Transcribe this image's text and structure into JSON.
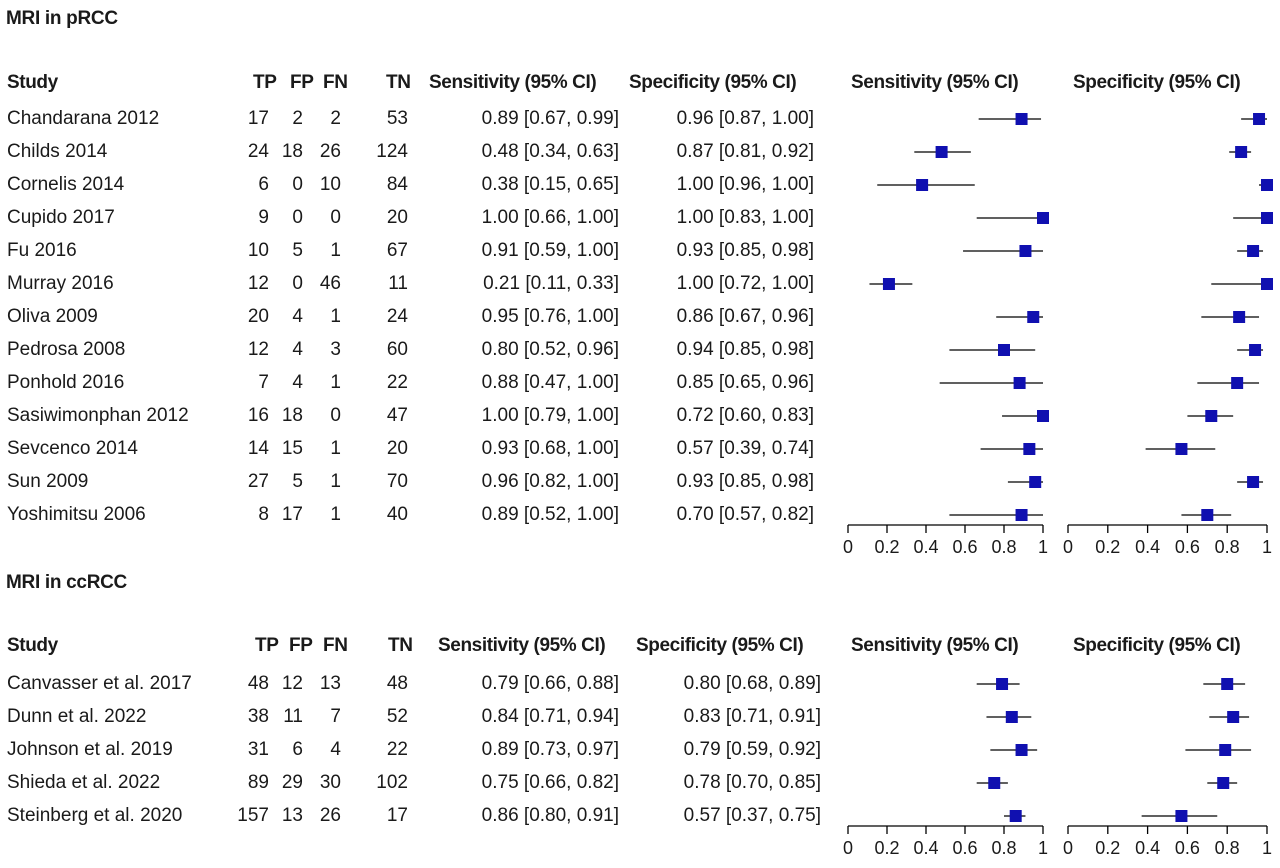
{
  "chart_data": [
    {
      "type": "forest",
      "title": "MRI in pRCC",
      "columns": [
        "Study",
        "TP",
        "FP",
        "FN",
        "TN",
        "Sensitivity (95% CI)",
        "Specificity (95% CI)"
      ],
      "plot_titles": [
        "Sensitivity (95% CI)",
        "Specificity (95% CI)"
      ],
      "axis_ticks": [
        "0",
        "0.2",
        "0.4",
        "0.6",
        "0.8",
        "1"
      ],
      "xlim": [
        0,
        1
      ],
      "marker_color": "#1010b0",
      "rows": [
        {
          "study": "Chandarana 2012",
          "tp": "17",
          "fp": "2",
          "fn": "2",
          "tn": "53",
          "sens_text": "0.89 [0.67, 0.99]",
          "spec_text": "0.96 [0.87, 1.00]",
          "sens": [
            0.89,
            0.67,
            0.99
          ],
          "spec": [
            0.96,
            0.87,
            1.0
          ]
        },
        {
          "study": "Childs 2014",
          "tp": "24",
          "fp": "18",
          "fn": "26",
          "tn": "124",
          "sens_text": "0.48 [0.34, 0.63]",
          "spec_text": "0.87 [0.81, 0.92]",
          "sens": [
            0.48,
            0.34,
            0.63
          ],
          "spec": [
            0.87,
            0.81,
            0.92
          ]
        },
        {
          "study": "Cornelis 2014",
          "tp": "6",
          "fp": "0",
          "fn": "10",
          "tn": "84",
          "sens_text": "0.38 [0.15, 0.65]",
          "spec_text": "1.00 [0.96, 1.00]",
          "sens": [
            0.38,
            0.15,
            0.65
          ],
          "spec": [
            1.0,
            0.96,
            1.0
          ]
        },
        {
          "study": "Cupido 2017",
          "tp": "9",
          "fp": "0",
          "fn": "0",
          "tn": "20",
          "sens_text": "1.00 [0.66, 1.00]",
          "spec_text": "1.00 [0.83, 1.00]",
          "sens": [
            1.0,
            0.66,
            1.0
          ],
          "spec": [
            1.0,
            0.83,
            1.0
          ]
        },
        {
          "study": "Fu 2016",
          "tp": "10",
          "fp": "5",
          "fn": "1",
          "tn": "67",
          "sens_text": "0.91 [0.59, 1.00]",
          "spec_text": "0.93 [0.85, 0.98]",
          "sens": [
            0.91,
            0.59,
            1.0
          ],
          "spec": [
            0.93,
            0.85,
            0.98
          ]
        },
        {
          "study": "Murray 2016",
          "tp": "12",
          "fp": "0",
          "fn": "46",
          "tn": "11",
          "sens_text": "0.21 [0.11, 0.33]",
          "spec_text": "1.00 [0.72, 1.00]",
          "sens": [
            0.21,
            0.11,
            0.33
          ],
          "spec": [
            1.0,
            0.72,
            1.0
          ]
        },
        {
          "study": "Oliva 2009",
          "tp": "20",
          "fp": "4",
          "fn": "1",
          "tn": "24",
          "sens_text": "0.95 [0.76, 1.00]",
          "spec_text": "0.86 [0.67, 0.96]",
          "sens": [
            0.95,
            0.76,
            1.0
          ],
          "spec": [
            0.86,
            0.67,
            0.96
          ]
        },
        {
          "study": "Pedrosa 2008",
          "tp": "12",
          "fp": "4",
          "fn": "3",
          "tn": "60",
          "sens_text": "0.80 [0.52, 0.96]",
          "spec_text": "0.94 [0.85, 0.98]",
          "sens": [
            0.8,
            0.52,
            0.96
          ],
          "spec": [
            0.94,
            0.85,
            0.98
          ]
        },
        {
          "study": "Ponhold 2016",
          "tp": "7",
          "fp": "4",
          "fn": "1",
          "tn": "22",
          "sens_text": "0.88 [0.47, 1.00]",
          "spec_text": "0.85 [0.65, 0.96]",
          "sens": [
            0.88,
            0.47,
            1.0
          ],
          "spec": [
            0.85,
            0.65,
            0.96
          ]
        },
        {
          "study": "Sasiwimonphan 2012",
          "tp": "16",
          "fp": "18",
          "fn": "0",
          "tn": "47",
          "sens_text": "1.00 [0.79, 1.00]",
          "spec_text": "0.72 [0.60, 0.83]",
          "sens": [
            1.0,
            0.79,
            1.0
          ],
          "spec": [
            0.72,
            0.6,
            0.83
          ]
        },
        {
          "study": "Sevcenco 2014",
          "tp": "14",
          "fp": "15",
          "fn": "1",
          "tn": "20",
          "sens_text": "0.93 [0.68, 1.00]",
          "spec_text": "0.57 [0.39, 0.74]",
          "sens": [
            0.93,
            0.68,
            1.0
          ],
          "spec": [
            0.57,
            0.39,
            0.74
          ]
        },
        {
          "study": "Sun 2009",
          "tp": "27",
          "fp": "5",
          "fn": "1",
          "tn": "70",
          "sens_text": "0.96 [0.82, 1.00]",
          "spec_text": "0.93 [0.85, 0.98]",
          "sens": [
            0.96,
            0.82,
            1.0
          ],
          "spec": [
            0.93,
            0.85,
            0.98
          ]
        },
        {
          "study": "Yoshimitsu 2006",
          "tp": "8",
          "fp": "17",
          "fn": "1",
          "tn": "40",
          "sens_text": "0.89 [0.52, 1.00]",
          "spec_text": "0.70 [0.57, 0.82]",
          "sens": [
            0.89,
            0.52,
            1.0
          ],
          "spec": [
            0.7,
            0.57,
            0.82
          ]
        }
      ]
    },
    {
      "type": "forest",
      "title": "MRI in ccRCC",
      "columns": [
        "Study",
        "TP",
        "FP",
        "FN",
        "TN",
        "Sensitivity (95% CI)",
        "Specificity (95% CI)"
      ],
      "plot_titles": [
        "Sensitivity (95% CI)",
        "Specificity (95% CI)"
      ],
      "axis_ticks": [
        "0",
        "0.2",
        "0.4",
        "0.6",
        "0.8",
        "1"
      ],
      "xlim": [
        0,
        1
      ],
      "marker_color": "#1010b0",
      "rows": [
        {
          "study": "Canvasser et al. 2017",
          "tp": "48",
          "fp": "12",
          "fn": "13",
          "tn": "48",
          "sens_text": "0.79 [0.66, 0.88]",
          "spec_text": "0.80 [0.68, 0.89]",
          "sens": [
            0.79,
            0.66,
            0.88
          ],
          "spec": [
            0.8,
            0.68,
            0.89
          ]
        },
        {
          "study": "Dunn et al. 2022",
          "tp": "38",
          "fp": "11",
          "fn": "7",
          "tn": "52",
          "sens_text": "0.84 [0.71, 0.94]",
          "spec_text": "0.83 [0.71, 0.91]",
          "sens": [
            0.84,
            0.71,
            0.94
          ],
          "spec": [
            0.83,
            0.71,
            0.91
          ]
        },
        {
          "study": "Johnson et al. 2019",
          "tp": "31",
          "fp": "6",
          "fn": "4",
          "tn": "22",
          "sens_text": "0.89 [0.73, 0.97]",
          "spec_text": "0.79 [0.59, 0.92]",
          "sens": [
            0.89,
            0.73,
            0.97
          ],
          "spec": [
            0.79,
            0.59,
            0.92
          ]
        },
        {
          "study": "Shieda et al. 2022",
          "tp": "89",
          "fp": "29",
          "fn": "30",
          "tn": "102",
          "sens_text": "0.75 [0.66, 0.82]",
          "spec_text": "0.78 [0.70, 0.85]",
          "sens": [
            0.75,
            0.66,
            0.82
          ],
          "spec": [
            0.78,
            0.7,
            0.85
          ]
        },
        {
          "study": "Steinberg et al. 2020",
          "tp": "157",
          "fp": "13",
          "fn": "26",
          "tn": "17",
          "sens_text": "0.86 [0.80, 0.91]",
          "spec_text": "0.57 [0.37, 0.75]",
          "sens": [
            0.86,
            0.8,
            0.91
          ],
          "spec": [
            0.57,
            0.37,
            0.75
          ]
        }
      ]
    }
  ]
}
